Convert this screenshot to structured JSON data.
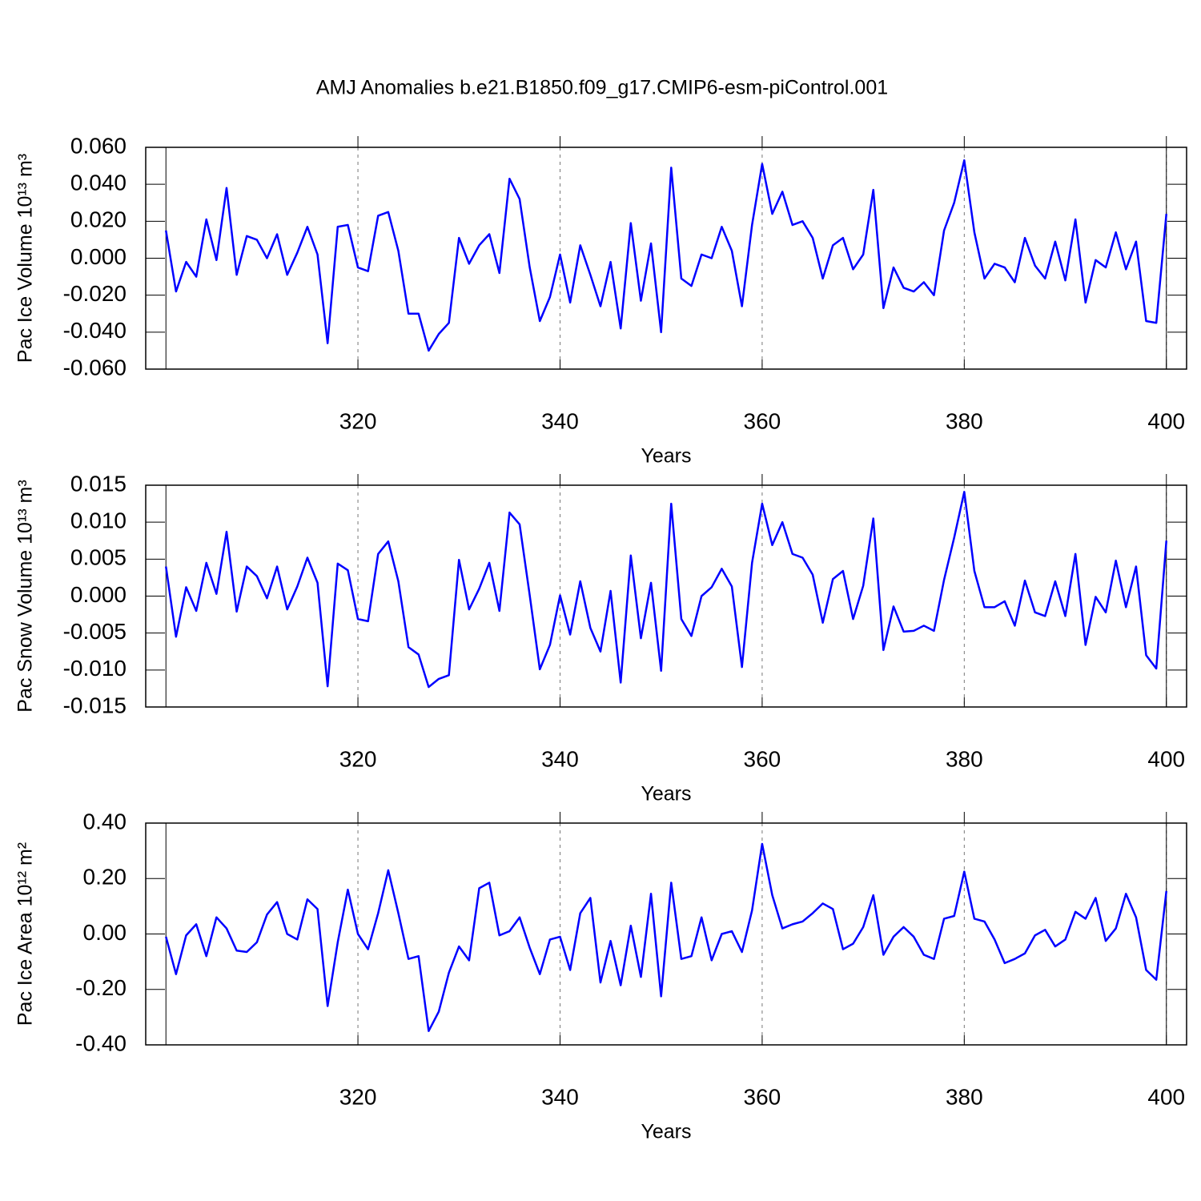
{
  "title": "AMJ Anomalies b.e21.B1850.f09_g17.CMIP6-esm-piControl.001",
  "chart_data": [
    {
      "type": "line",
      "ylabel": "Pac Ice Volume 10¹³ m³",
      "xlabel": "Years",
      "color": "#0000ff",
      "grid": true,
      "xlim": [
        299,
        402
      ],
      "xticks": [
        320,
        340,
        360,
        380,
        400
      ],
      "ylim": [
        -0.06,
        0.06
      ],
      "yticks": [
        {
          "value": -0.06,
          "label": "-0.060"
        },
        {
          "value": -0.04,
          "label": "-0.040"
        },
        {
          "value": -0.02,
          "label": "-0.020"
        },
        {
          "value": 0,
          "label": "0.000"
        },
        {
          "value": 0.02,
          "label": "0.020"
        },
        {
          "value": 0.04,
          "label": "0.040"
        },
        {
          "value": 0.06,
          "label": "0.060"
        }
      ],
      "x": [
        301,
        302,
        303,
        304,
        305,
        306,
        307,
        308,
        309,
        310,
        311,
        312,
        313,
        314,
        315,
        316,
        317,
        318,
        319,
        320,
        321,
        322,
        323,
        324,
        325,
        326,
        327,
        328,
        329,
        330,
        331,
        332,
        333,
        334,
        335,
        336,
        337,
        338,
        339,
        340,
        341,
        342,
        343,
        344,
        345,
        346,
        347,
        348,
        349,
        350,
        351,
        352,
        353,
        354,
        355,
        356,
        357,
        358,
        359,
        360,
        361,
        362,
        363,
        364,
        365,
        366,
        367,
        368,
        369,
        370,
        371,
        372,
        373,
        374,
        375,
        376,
        377,
        378,
        379,
        380,
        381,
        382,
        383,
        384,
        385,
        386,
        387,
        388,
        389,
        390,
        391,
        392,
        393,
        394,
        395,
        396,
        397,
        398,
        399,
        400
      ],
      "values": [
        0.015,
        -0.018,
        -0.002,
        -0.01,
        0.021,
        -0.001,
        0.038,
        -0.009,
        0.012,
        0.01,
        0.0,
        0.013,
        -0.009,
        0.003,
        0.017,
        0.002,
        -0.046,
        0.017,
        0.018,
        -0.005,
        -0.007,
        0.023,
        0.025,
        0.004,
        -0.03,
        -0.03,
        -0.05,
        -0.041,
        -0.035,
        0.011,
        -0.003,
        0.007,
        0.013,
        -0.008,
        0.043,
        0.032,
        -0.005,
        -0.034,
        -0.021,
        0.002,
        -0.024,
        0.007,
        -0.009,
        -0.026,
        -0.002,
        -0.038,
        0.019,
        -0.023,
        0.008,
        -0.04,
        0.049,
        -0.011,
        -0.015,
        0.002,
        0.0,
        0.017,
        0.004,
        -0.026,
        0.018,
        0.051,
        0.024,
        0.036,
        0.018,
        0.02,
        0.011,
        -0.011,
        0.007,
        0.011,
        -0.006,
        0.002,
        0.037,
        -0.027,
        -0.005,
        -0.016,
        -0.018,
        -0.013,
        -0.02,
        0.015,
        0.03,
        0.053,
        0.014,
        -0.011,
        -0.003,
        -0.005,
        -0.013,
        0.011,
        -0.004,
        -0.011,
        0.009,
        -0.012,
        0.021,
        -0.024,
        -0.001,
        -0.005,
        0.014,
        -0.006,
        0.009,
        -0.034,
        -0.035,
        0.024
      ]
    },
    {
      "type": "line",
      "ylabel": "Pac Snow Volume 10¹³ m³",
      "xlabel": "Years",
      "color": "#0000ff",
      "grid": true,
      "xlim": [
        299,
        402
      ],
      "xticks": [
        320,
        340,
        360,
        380,
        400
      ],
      "ylim": [
        -0.015,
        0.015
      ],
      "yticks": [
        {
          "value": -0.015,
          "label": "-0.015"
        },
        {
          "value": -0.01,
          "label": "-0.010"
        },
        {
          "value": -0.005,
          "label": "-0.005"
        },
        {
          "value": 0,
          "label": "0.000"
        },
        {
          "value": 0.005,
          "label": "0.005"
        },
        {
          "value": 0.01,
          "label": "0.010"
        },
        {
          "value": 0.015,
          "label": "0.015"
        }
      ],
      "x": [
        301,
        302,
        303,
        304,
        305,
        306,
        307,
        308,
        309,
        310,
        311,
        312,
        313,
        314,
        315,
        316,
        317,
        318,
        319,
        320,
        321,
        322,
        323,
        324,
        325,
        326,
        327,
        328,
        329,
        330,
        331,
        332,
        333,
        334,
        335,
        336,
        337,
        338,
        339,
        340,
        341,
        342,
        343,
        344,
        345,
        346,
        347,
        348,
        349,
        350,
        351,
        352,
        353,
        354,
        355,
        356,
        357,
        358,
        359,
        360,
        361,
        362,
        363,
        364,
        365,
        366,
        367,
        368,
        369,
        370,
        371,
        372,
        373,
        374,
        375,
        376,
        377,
        378,
        379,
        380,
        381,
        382,
        383,
        384,
        385,
        386,
        387,
        388,
        389,
        390,
        391,
        392,
        393,
        394,
        395,
        396,
        397,
        398,
        399,
        400
      ],
      "values": [
        0.004,
        -0.0055,
        0.0012,
        -0.002,
        0.0045,
        0.0003,
        0.0087,
        -0.0021,
        0.004,
        0.0027,
        -0.0003,
        0.004,
        -0.0018,
        0.0013,
        0.0052,
        0.0018,
        -0.0122,
        0.0044,
        0.0035,
        -0.0031,
        -0.0034,
        0.0057,
        0.0074,
        0.002,
        -0.0069,
        -0.0079,
        -0.0123,
        -0.0112,
        -0.0107,
        0.0049,
        -0.0018,
        0.001,
        0.0045,
        -0.002,
        0.0113,
        0.0097,
        0.0001,
        -0.0099,
        -0.0066,
        0.0001,
        -0.0052,
        0.002,
        -0.0043,
        -0.0075,
        0.0007,
        -0.0117,
        0.0055,
        -0.0057,
        0.0018,
        -0.0101,
        0.0125,
        -0.0031,
        -0.0054,
        0.0,
        0.0012,
        0.0037,
        0.0013,
        -0.0096,
        0.0045,
        0.0125,
        0.0069,
        0.01,
        0.0057,
        0.0052,
        0.0029,
        -0.0036,
        0.0023,
        0.0034,
        -0.0031,
        0.0014,
        0.0105,
        -0.0073,
        -0.0014,
        -0.0048,
        -0.0047,
        -0.004,
        -0.0047,
        0.0022,
        0.0079,
        0.0141,
        0.0034,
        -0.0015,
        -0.0015,
        -0.0007,
        -0.004,
        0.0021,
        -0.0022,
        -0.0027,
        0.002,
        -0.0027,
        0.0057,
        -0.0066,
        -0.0001,
        -0.0022,
        0.0048,
        -0.0015,
        0.004,
        -0.008,
        -0.0098,
        0.0075
      ]
    },
    {
      "type": "line",
      "ylabel": "Pac Ice Area 10¹² m²",
      "xlabel": "Years",
      "color": "#0000ff",
      "grid": true,
      "xlim": [
        299,
        402
      ],
      "xticks": [
        320,
        340,
        360,
        380,
        400
      ],
      "ylim": [
        -0.4,
        0.4
      ],
      "yticks": [
        {
          "value": -0.4,
          "label": "-0.40"
        },
        {
          "value": -0.2,
          "label": "-0.20"
        },
        {
          "value": 0,
          "label": "0.00"
        },
        {
          "value": 0.2,
          "label": "0.20"
        },
        {
          "value": 0.4,
          "label": "0.40"
        }
      ],
      "x": [
        301,
        302,
        303,
        304,
        305,
        306,
        307,
        308,
        309,
        310,
        311,
        312,
        313,
        314,
        315,
        316,
        317,
        318,
        319,
        320,
        321,
        322,
        323,
        324,
        325,
        326,
        327,
        328,
        329,
        330,
        331,
        332,
        333,
        334,
        335,
        336,
        337,
        338,
        339,
        340,
        341,
        342,
        343,
        344,
        345,
        346,
        347,
        348,
        349,
        350,
        351,
        352,
        353,
        354,
        355,
        356,
        357,
        358,
        359,
        360,
        361,
        362,
        363,
        364,
        365,
        366,
        367,
        368,
        369,
        370,
        371,
        372,
        373,
        374,
        375,
        376,
        377,
        378,
        379,
        380,
        381,
        382,
        383,
        384,
        385,
        386,
        387,
        388,
        389,
        390,
        391,
        392,
        393,
        394,
        395,
        396,
        397,
        398,
        399,
        400
      ],
      "values": [
        -0.01,
        -0.145,
        -0.005,
        0.035,
        -0.08,
        0.06,
        0.02,
        -0.06,
        -0.065,
        -0.03,
        0.07,
        0.115,
        0.0,
        -0.02,
        0.125,
        0.09,
        -0.26,
        -0.03,
        0.16,
        0.0,
        -0.055,
        0.075,
        0.23,
        0.075,
        -0.09,
        -0.08,
        -0.35,
        -0.28,
        -0.14,
        -0.045,
        -0.095,
        0.165,
        0.185,
        -0.005,
        0.01,
        0.06,
        -0.05,
        -0.145,
        -0.02,
        -0.01,
        -0.13,
        0.075,
        0.13,
        -0.175,
        -0.025,
        -0.185,
        0.03,
        -0.155,
        0.145,
        -0.225,
        0.185,
        -0.09,
        -0.08,
        0.06,
        -0.095,
        0.0,
        0.01,
        -0.065,
        0.085,
        0.325,
        0.14,
        0.02,
        0.035,
        0.045,
        0.075,
        0.11,
        0.09,
        -0.055,
        -0.035,
        0.025,
        0.14,
        -0.075,
        -0.01,
        0.025,
        -0.01,
        -0.075,
        -0.09,
        0.055,
        0.065,
        0.225,
        0.055,
        0.045,
        -0.02,
        -0.105,
        -0.09,
        -0.07,
        -0.005,
        0.015,
        -0.045,
        -0.02,
        0.08,
        0.055,
        0.13,
        -0.025,
        0.02,
        0.145,
        0.06,
        -0.13,
        -0.165,
        0.155
      ]
    }
  ]
}
